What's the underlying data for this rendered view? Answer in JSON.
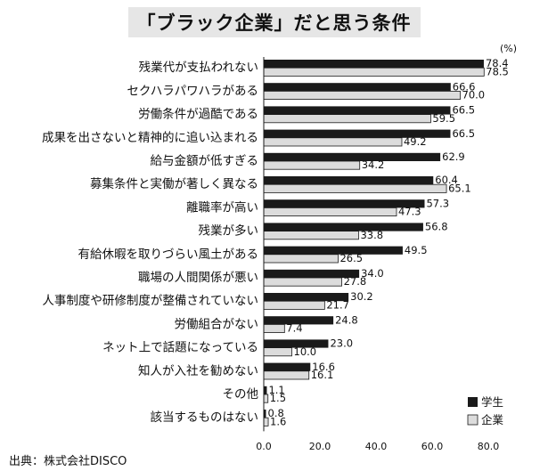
{
  "chart_data": {
    "type": "bar",
    "orientation": "horizontal",
    "title": "「ブラック企業」だと思う条件",
    "unit": "(%)",
    "source": "出典：株式会社DISCO",
    "xlim": [
      0,
      80
    ],
    "xticks": [
      "0.0",
      "20.0",
      "40.0",
      "60.0",
      "80.0"
    ],
    "grid": false,
    "legend_position": "bottom-right",
    "categories": [
      "残業代が支払われない",
      "セクハラパワハラがある",
      "労働条件が過酷である",
      "成果を出さないと精神的に追い込まれる",
      "給与金額が低すぎる",
      "募集条件と実働が著しく異なる",
      "離職率が高い",
      "残業が多い",
      "有給休暇を取りづらい風土がある",
      "職場の人間関係が悪い",
      "人事制度や研修制度が整備されていない",
      "労働組合がない",
      "ネット上で話題になっている",
      "知人が入社を勧めない",
      "その他",
      "該当するものはない"
    ],
    "series": [
      {
        "name": "学生",
        "color": "#1a1a1a",
        "values": [
          78.4,
          66.6,
          66.5,
          66.5,
          62.9,
          60.4,
          57.3,
          56.8,
          49.5,
          34.0,
          30.2,
          24.8,
          23.0,
          16.6,
          1.1,
          0.8
        ],
        "labels": [
          "78.4",
          "66.6",
          "66.5",
          "66.5",
          "62.9",
          "60.4",
          "57.3",
          "56.8",
          "49.5",
          "34.0",
          "30.2",
          "24.8",
          "23.0",
          "16.6",
          "1.1",
          "0.8"
        ]
      },
      {
        "name": "企業",
        "color": "#dcdcdc",
        "values": [
          78.5,
          70.0,
          59.5,
          49.2,
          34.2,
          65.1,
          47.3,
          33.8,
          26.5,
          27.8,
          21.7,
          7.4,
          10.0,
          16.1,
          1.5,
          1.6
        ],
        "labels": [
          "78.5",
          "70.0",
          "59.5",
          "49.2",
          "34.2",
          "65.1",
          "47.3",
          "33.8",
          "26.5",
          "27.8",
          "21.7",
          "7.4",
          "10.0",
          "16.1",
          "1.5",
          "1.6"
        ]
      }
    ]
  }
}
